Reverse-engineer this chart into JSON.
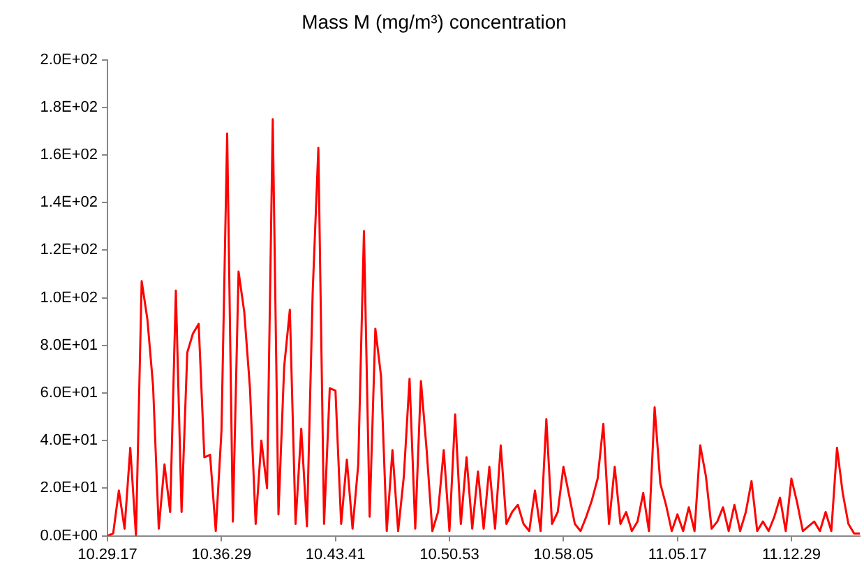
{
  "chart_data": {
    "type": "line",
    "title": "Mass M (mg/m³) concentration",
    "categories": [
      "10.29.17",
      null,
      null,
      null,
      null,
      null,
      null,
      null,
      null,
      null,
      null,
      null,
      null,
      null,
      null,
      null,
      null,
      null,
      null,
      null,
      "10.36.29",
      null,
      null,
      null,
      null,
      null,
      null,
      null,
      null,
      null,
      null,
      null,
      null,
      null,
      null,
      null,
      null,
      null,
      null,
      null,
      "10.43.41",
      null,
      null,
      null,
      null,
      null,
      null,
      null,
      null,
      null,
      null,
      null,
      null,
      null,
      null,
      null,
      null,
      null,
      null,
      null,
      "10.50.53",
      null,
      null,
      null,
      null,
      null,
      null,
      null,
      null,
      null,
      null,
      null,
      null,
      null,
      null,
      null,
      null,
      null,
      null,
      null,
      "10.58.05",
      null,
      null,
      null,
      null,
      null,
      null,
      null,
      null,
      null,
      null,
      null,
      null,
      null,
      null,
      null,
      null,
      null,
      null,
      null,
      "11.05.17",
      null,
      null,
      null,
      null,
      null,
      null,
      null,
      null,
      null,
      null,
      null,
      null,
      null,
      null,
      null,
      null,
      null,
      null,
      null,
      "11.12.29",
      null,
      null,
      null,
      null,
      null,
      null,
      null,
      null,
      null,
      null,
      null,
      null
    ],
    "series": [
      {
        "color": "#ff0000",
        "values": [
          0,
          1,
          19,
          3,
          37,
          0,
          107,
          91,
          63,
          3,
          30,
          10,
          103,
          10,
          77,
          85,
          89,
          33,
          34,
          2,
          44,
          169,
          6,
          111,
          94,
          62,
          5,
          40,
          20,
          175,
          9,
          71,
          95,
          5,
          45,
          4,
          102,
          163,
          5,
          62,
          61,
          5,
          32,
          3,
          30,
          128,
          8,
          87,
          67,
          2,
          36,
          2,
          25,
          66,
          3,
          65,
          36,
          2,
          10,
          36,
          2,
          51,
          5,
          33,
          3,
          27,
          3,
          29,
          3,
          38,
          5,
          10,
          13,
          5,
          2,
          19,
          2,
          49,
          5,
          10,
          29,
          17,
          5,
          2,
          8,
          15,
          24,
          47,
          5,
          29,
          5,
          10,
          2,
          6,
          18,
          2,
          54,
          22,
          13,
          2,
          9,
          2,
          12,
          2,
          38,
          25,
          3,
          6,
          12,
          2,
          13,
          2,
          10,
          23,
          2,
          6,
          2,
          8,
          16,
          2,
          24,
          14,
          2,
          4,
          6,
          2,
          10,
          2,
          37,
          18,
          5,
          1,
          1
        ]
      }
    ],
    "ylim": [
      0,
      200
    ],
    "yticks": [
      {
        "value": 0,
        "label": "0.0E+00"
      },
      {
        "value": 20,
        "label": "2.0E+01"
      },
      {
        "value": 40,
        "label": "4.0E+01"
      },
      {
        "value": 60,
        "label": "6.0E+01"
      },
      {
        "value": 80,
        "label": "8.0E+01"
      },
      {
        "value": 100,
        "label": "1.0E+02"
      },
      {
        "value": 120,
        "label": "1.2E+02"
      },
      {
        "value": 140,
        "label": "1.4E+02"
      },
      {
        "value": 160,
        "label": "1.6E+02"
      },
      {
        "value": 180,
        "label": "1.8E+02"
      },
      {
        "value": 200,
        "label": "2.0E+02"
      }
    ],
    "grid": false,
    "legend": false,
    "marker": "none",
    "line_style": "solid"
  }
}
